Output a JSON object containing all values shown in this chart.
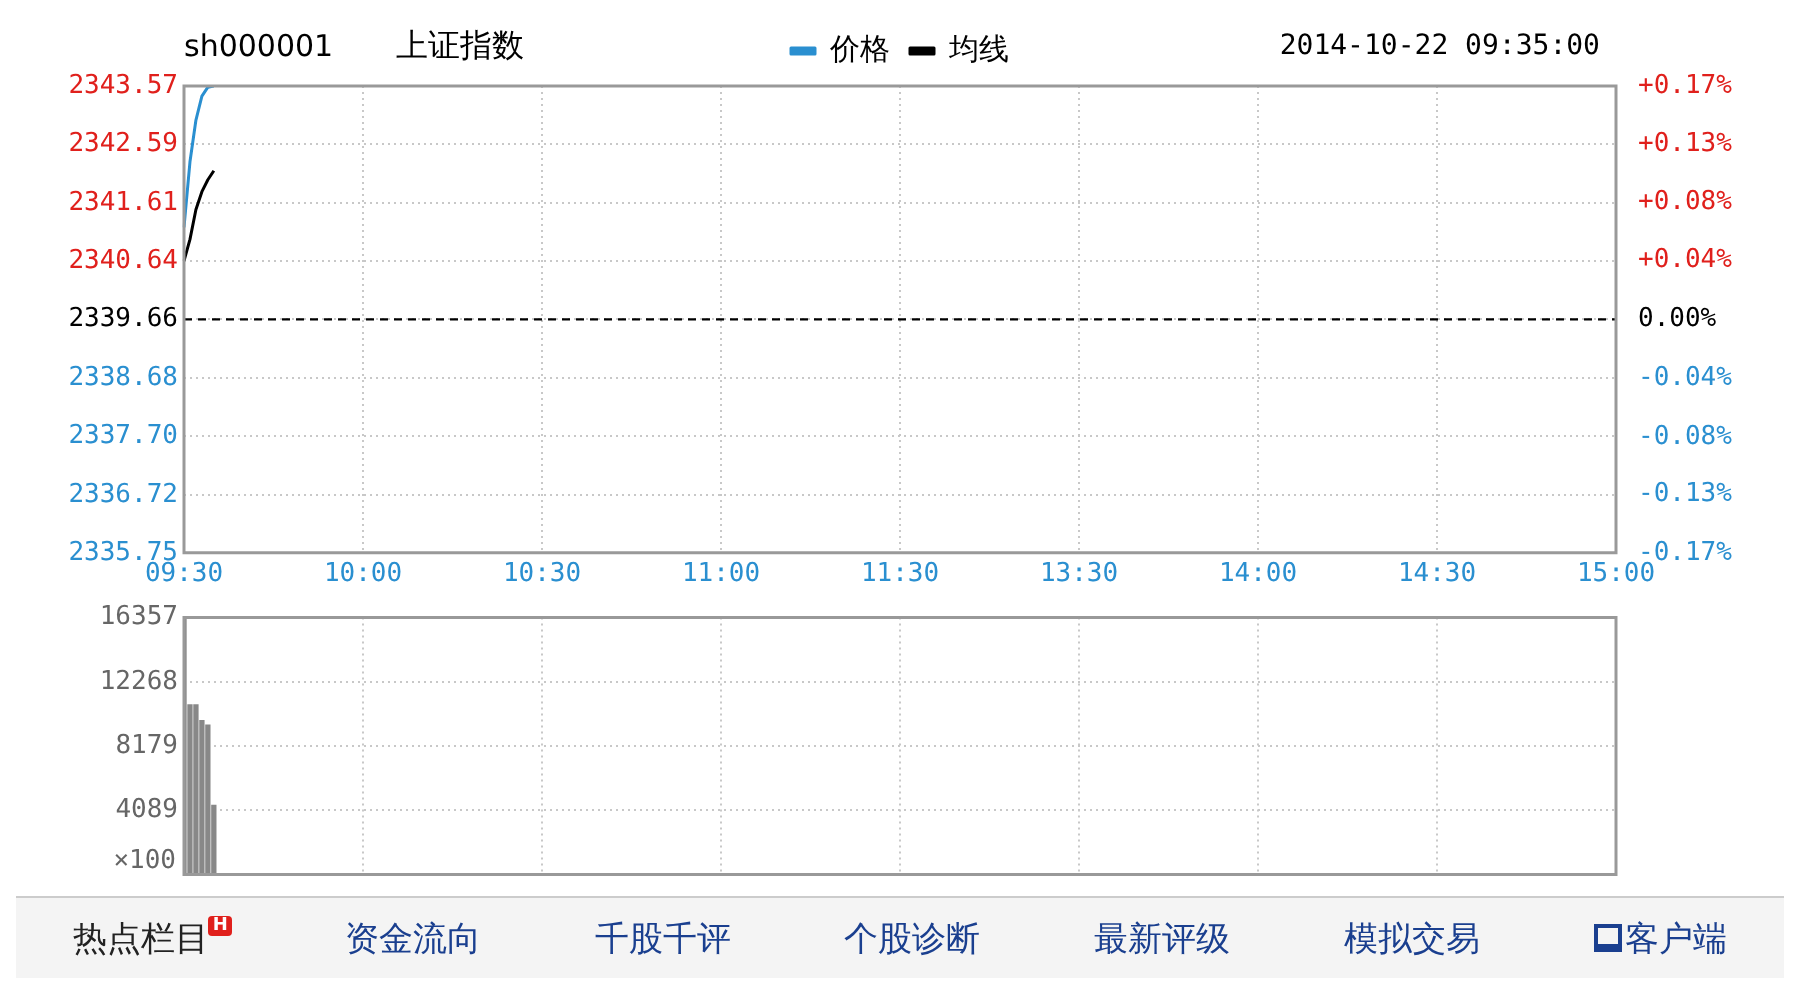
{
  "chart_data": [
    {
      "type": "line",
      "title": "上证指数",
      "subtitle": "sh000001",
      "annotations": [
        "2014-10-22 09:35:00"
      ],
      "categories": [
        "09:30",
        null,
        null,
        null,
        null,
        null,
        null,
        null,
        null,
        null,
        null,
        null,
        null,
        null,
        null,
        null,
        null,
        null,
        null,
        null,
        null,
        null,
        null,
        null,
        null,
        null,
        null,
        null,
        null,
        null,
        "10:00",
        null,
        null,
        null,
        null,
        null,
        null,
        null,
        null,
        null,
        null,
        null,
        null,
        null,
        null,
        null,
        null,
        null,
        null,
        null,
        null,
        null,
        null,
        null,
        null,
        null,
        null,
        null,
        null,
        null,
        "10:30",
        null,
        null,
        null,
        null,
        null,
        null,
        null,
        null,
        null,
        null,
        null,
        null,
        null,
        null,
        null,
        null,
        null,
        null,
        null,
        null,
        null,
        null,
        null,
        null,
        null,
        null,
        null,
        null,
        null,
        "11:00",
        null,
        null,
        null,
        null,
        null,
        null,
        null,
        null,
        null,
        null,
        null,
        null,
        null,
        null,
        null,
        null,
        null,
        null,
        null,
        null,
        null,
        null,
        null,
        null,
        null,
        null,
        null,
        null,
        null,
        "11:30",
        null,
        null,
        null,
        null,
        null,
        null,
        null,
        null,
        null,
        null,
        null,
        null,
        null,
        null,
        null,
        null,
        null,
        null,
        null,
        null,
        null,
        null,
        null,
        null,
        null,
        null,
        null,
        null,
        null,
        "13:30",
        null,
        null,
        null,
        null,
        null,
        null,
        null,
        null,
        null,
        null,
        null,
        null,
        null,
        null,
        null,
        null,
        null,
        null,
        null,
        null,
        null,
        null,
        null,
        null,
        null,
        null,
        null,
        null,
        null,
        "14:00",
        null,
        null,
        null,
        null,
        null,
        null,
        null,
        null,
        null,
        null,
        null,
        null,
        null,
        null,
        null,
        null,
        null,
        null,
        null,
        null,
        null,
        null,
        null,
        null,
        null,
        null,
        null,
        null,
        null,
        "14:30",
        null,
        null,
        null,
        null,
        null,
        null,
        null,
        null,
        null,
        null,
        null,
        null,
        null,
        null,
        null,
        null,
        null,
        null,
        null,
        null,
        null,
        null,
        null,
        null,
        null,
        null,
        null,
        null,
        null,
        "15:00"
      ],
      "series": [
        {
          "name": "价格",
          "color": "#2a8fd0",
          "values": [
            2341.2,
            2342.3,
            2343.0,
            2343.4,
            2343.55,
            2343.57,
            null,
            null,
            null,
            null,
            null,
            null,
            null,
            null,
            null,
            null,
            null,
            null,
            null,
            null,
            null,
            null,
            null,
            null,
            null,
            null,
            null,
            null,
            null,
            null,
            null,
            null,
            null,
            null,
            null,
            null,
            null,
            null,
            null,
            null,
            null,
            null,
            null,
            null,
            null,
            null,
            null,
            null,
            null,
            null,
            null,
            null,
            null,
            null,
            null,
            null,
            null,
            null,
            null,
            null,
            null,
            null,
            null,
            null,
            null,
            null,
            null,
            null,
            null,
            null,
            null,
            null,
            null,
            null,
            null,
            null,
            null,
            null,
            null,
            null,
            null,
            null,
            null,
            null,
            null,
            null,
            null,
            null,
            null,
            null,
            null,
            null,
            null,
            null,
            null,
            null,
            null,
            null,
            null,
            null,
            null,
            null,
            null,
            null,
            null,
            null,
            null,
            null,
            null,
            null,
            null,
            null,
            null,
            null,
            null,
            null,
            null,
            null,
            null,
            null,
            null,
            null,
            null,
            null,
            null,
            null,
            null,
            null,
            null,
            null,
            null,
            null,
            null,
            null,
            null,
            null,
            null,
            null,
            null,
            null,
            null,
            null,
            null,
            null,
            null,
            null,
            null,
            null,
            null,
            null,
            null,
            null,
            null,
            null,
            null,
            null,
            null,
            null,
            null,
            null,
            null,
            null,
            null,
            null,
            null,
            null,
            null,
            null,
            null,
            null,
            null,
            null,
            null,
            null,
            null,
            null,
            null,
            null,
            null,
            null,
            null,
            null,
            null,
            null,
            null,
            null,
            null,
            null,
            null,
            null,
            null,
            null,
            null,
            null,
            null,
            null,
            null,
            null,
            null,
            null,
            null,
            null,
            null,
            null,
            null,
            null,
            null,
            null,
            null,
            null,
            null,
            null,
            null,
            null,
            null,
            null,
            null,
            null,
            null,
            null,
            null,
            null,
            null,
            null,
            null,
            null,
            null,
            null,
            null,
            null,
            null,
            null,
            null,
            null,
            null,
            null,
            null,
            null,
            null,
            null,
            null
          ]
        },
        {
          "name": "均线",
          "color": "#000000",
          "values": [
            2340.64,
            2341.0,
            2341.5,
            2341.8,
            2342.0,
            2342.15,
            null,
            null,
            null,
            null,
            null,
            null,
            null,
            null,
            null,
            null,
            null,
            null,
            null,
            null,
            null,
            null,
            null,
            null,
            null,
            null,
            null,
            null,
            null,
            null,
            null,
            null,
            null,
            null,
            null,
            null,
            null,
            null,
            null,
            null,
            null,
            null,
            null,
            null,
            null,
            null,
            null,
            null,
            null,
            null,
            null,
            null,
            null,
            null,
            null,
            null,
            null,
            null,
            null,
            null,
            null,
            null,
            null,
            null,
            null,
            null,
            null,
            null,
            null,
            null,
            null,
            null,
            null,
            null,
            null,
            null,
            null,
            null,
            null,
            null,
            null,
            null,
            null,
            null,
            null,
            null,
            null,
            null,
            null,
            null,
            null,
            null,
            null,
            null,
            null,
            null,
            null,
            null,
            null,
            null,
            null,
            null,
            null,
            null,
            null,
            null,
            null,
            null,
            null,
            null,
            null,
            null,
            null,
            null,
            null,
            null,
            null,
            null,
            null,
            null,
            null,
            null,
            null,
            null,
            null,
            null,
            null,
            null,
            null,
            null,
            null,
            null,
            null,
            null,
            null,
            null,
            null,
            null,
            null,
            null,
            null,
            null,
            null,
            null,
            null,
            null,
            null,
            null,
            null,
            null,
            null,
            null,
            null,
            null,
            null,
            null,
            null,
            null,
            null,
            null,
            null,
            null,
            null,
            null,
            null,
            null,
            null,
            null,
            null,
            null,
            null,
            null,
            null,
            null,
            null,
            null,
            null,
            null,
            null,
            null,
            null,
            null,
            null,
            null,
            null,
            null,
            null,
            null,
            null,
            null,
            null,
            null,
            null,
            null,
            null,
            null,
            null,
            null,
            null,
            null,
            null,
            null,
            null,
            null,
            null,
            null,
            null,
            null,
            null,
            null,
            null,
            null,
            null,
            null,
            null,
            null,
            null,
            null,
            null,
            null,
            null,
            null,
            null,
            null,
            null,
            null,
            null,
            null,
            null,
            null,
            null,
            null,
            null,
            null,
            null,
            null,
            null,
            null,
            null,
            null,
            null
          ]
        }
      ],
      "ylim": [
        2335.75,
        2343.57
      ],
      "yticks": [
        2335.75,
        2336.72,
        {
          "value": 2337.7,
          "label": "2337.70"
        },
        2338.68,
        2339.66,
        2340.64,
        2341.61,
        2342.59,
        2343.57
      ],
      "y2lim": [
        -0.167,
        0.167
      ],
      "y2ticks": [
        {
          "value": -0.167,
          "label": "-0.17%"
        },
        {
          "value": -0.125,
          "label": "-0.13%"
        },
        {
          "value": -0.084,
          "label": "-0.08%"
        },
        {
          "value": -0.042,
          "label": "-0.04%"
        },
        {
          "value": 0,
          "label": "0.00%"
        },
        {
          "value": 0.042,
          "label": "+0.04%"
        },
        {
          "value": 0.084,
          "label": "+0.08%"
        },
        {
          "value": 0.125,
          "label": "+0.13%"
        },
        {
          "value": 0.167,
          "label": "+0.17%"
        }
      ],
      "ref_lines": [
        {
          "axis": "y",
          "value": 2339.66,
          "color": "#000000",
          "line_style": "dashed"
        }
      ],
      "grid": true,
      "legend": "top",
      "marker": "none",
      "line_style": "solid"
    },
    {
      "type": "bar",
      "color": "#888888",
      "categories": [
        null,
        null,
        null,
        null,
        null,
        null,
        null,
        null,
        null,
        null,
        null,
        null,
        null,
        null,
        null,
        null,
        null,
        null,
        null,
        null,
        null,
        null,
        null,
        null,
        null,
        null,
        null,
        null,
        null,
        null,
        null,
        null,
        null,
        null,
        null,
        null,
        null,
        null,
        null,
        null,
        null,
        null,
        null,
        null,
        null,
        null,
        null,
        null,
        null,
        null,
        null,
        null,
        null,
        null,
        null,
        null,
        null,
        null,
        null,
        null,
        null,
        null,
        null,
        null,
        null,
        null,
        null,
        null,
        null,
        null,
        null,
        null,
        null,
        null,
        null,
        null,
        null,
        null,
        null,
        null,
        null,
        null,
        null,
        null,
        null,
        null,
        null,
        null,
        null,
        null,
        null,
        null,
        null,
        null,
        null,
        null,
        null,
        null,
        null,
        null,
        null,
        null,
        null,
        null,
        null,
        null,
        null,
        null,
        null,
        null,
        null,
        null,
        null,
        null,
        null,
        null,
        null,
        null,
        null,
        null,
        null,
        null,
        null,
        null,
        null,
        null,
        null,
        null,
        null,
        null,
        null,
        null,
        null,
        null,
        null,
        null,
        null,
        null,
        null,
        null,
        null,
        null,
        null,
        null,
        null,
        null,
        null,
        null,
        null,
        null,
        null,
        null,
        null,
        null,
        null,
        null,
        null,
        null,
        null,
        null,
        null,
        null,
        null,
        null,
        null,
        null,
        null,
        null,
        null,
        null,
        null,
        null,
        null,
        null,
        null,
        null,
        null,
        null,
        null,
        null,
        null,
        null,
        null,
        null,
        null,
        null,
        null,
        null,
        null,
        null,
        null,
        null,
        null,
        null,
        null,
        null,
        null,
        null,
        null,
        null,
        null,
        null,
        null,
        null,
        null,
        null,
        null,
        null,
        null,
        null,
        null,
        null,
        null,
        null,
        null,
        null,
        null,
        null,
        null,
        null,
        null,
        null,
        null,
        null,
        null,
        null,
        null,
        null,
        null,
        null,
        null,
        null,
        null,
        null,
        null,
        null,
        null,
        null,
        null,
        null,
        null
      ],
      "values": [
        16357,
        10800,
        10800,
        9800,
        9500,
        4400,
        null,
        null,
        null,
        null,
        null,
        null,
        null,
        null,
        null,
        null,
        null,
        null,
        null,
        null,
        null,
        null,
        null,
        null,
        null,
        null,
        null,
        null,
        null,
        null,
        null,
        null,
        null,
        null,
        null,
        null,
        null,
        null,
        null,
        null,
        null,
        null,
        null,
        null,
        null,
        null,
        null,
        null,
        null,
        null,
        null,
        null,
        null,
        null,
        null,
        null,
        null,
        null,
        null,
        null,
        null,
        null,
        null,
        null,
        null,
        null,
        null,
        null,
        null,
        null,
        null,
        null,
        null,
        null,
        null,
        null,
        null,
        null,
        null,
        null,
        null,
        null,
        null,
        null,
        null,
        null,
        null,
        null,
        null,
        null,
        null,
        null,
        null,
        null,
        null,
        null,
        null,
        null,
        null,
        null,
        null,
        null,
        null,
        null,
        null,
        null,
        null,
        null,
        null,
        null,
        null,
        null,
        null,
        null,
        null,
        null,
        null,
        null,
        null,
        null,
        null,
        null,
        null,
        null,
        null,
        null,
        null,
        null,
        null,
        null,
        null,
        null,
        null,
        null,
        null,
        null,
        null,
        null,
        null,
        null,
        null,
        null,
        null,
        null,
        null,
        null,
        null,
        null,
        null,
        null,
        null,
        null,
        null,
        null,
        null,
        null,
        null,
        null,
        null,
        null,
        null,
        null,
        null,
        null,
        null,
        null,
        null,
        null,
        null,
        null,
        null,
        null,
        null,
        null,
        null,
        null,
        null,
        null,
        null,
        null,
        null,
        null,
        null,
        null,
        null,
        null,
        null,
        null,
        null,
        null,
        null,
        null,
        null,
        null,
        null,
        null,
        null,
        null,
        null,
        null,
        null,
        null,
        null,
        null,
        null,
        null,
        null,
        null,
        null,
        null,
        null,
        null,
        null,
        null,
        null,
        null,
        null,
        null,
        null,
        null,
        null,
        null,
        null,
        null,
        null,
        null,
        null,
        null,
        null,
        null,
        null,
        null,
        null,
        null,
        null,
        null,
        null,
        null,
        null,
        null,
        null
      ],
      "ylim": [
        0,
        16357
      ],
      "yticks": [
        {
          "value": 0,
          "label": null
        },
        4089,
        8179,
        12268,
        16357
      ],
      "ylabel": "×100",
      "grid": true,
      "tick_labels": "y"
    },
    {
      "type": "other",
      "annotations": [
        "热点栏目",
        "H",
        "资金流向",
        "千股千评",
        "个股诊断",
        "最新评级",
        "模拟交易",
        "客户端"
      ]
    }
  ]
}
